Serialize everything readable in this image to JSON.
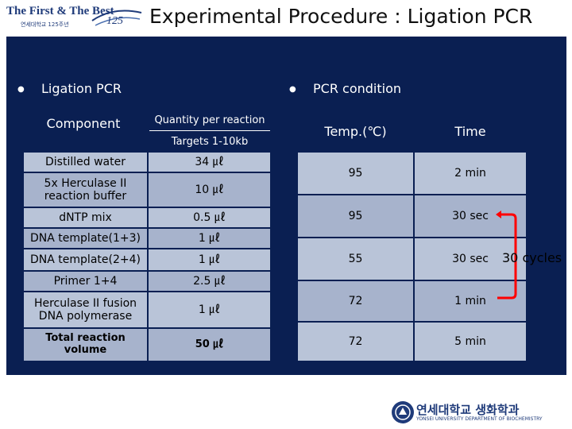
{
  "header": {
    "logo_text": "The First & The Best",
    "logo_sub": "연세대학교 125주년",
    "title": "Experimental Procedure : Ligation PCR"
  },
  "left": {
    "bullet": "Ligation PCR",
    "col_component": "Component",
    "col_quantity": "Quantity per reaction",
    "col_targets": "Targets 1-10kb",
    "rows": [
      {
        "component": "Distilled water",
        "quantity": "34 ㎕"
      },
      {
        "component": "5x Herculase II reaction buffer",
        "quantity": "10 ㎕"
      },
      {
        "component": "dNTP mix",
        "quantity": "0.5 ㎕"
      },
      {
        "component": "DNA template(1+3)",
        "quantity": "1 ㎕"
      },
      {
        "component": "DNA template(2+4)",
        "quantity": "1 ㎕"
      },
      {
        "component": "Primer 1+4",
        "quantity": "2.5 ㎕"
      },
      {
        "component": "Herculase II fusion DNA polymerase",
        "quantity": "1 ㎕"
      },
      {
        "component": "Total reaction volume",
        "quantity": "50 ㎕"
      }
    ]
  },
  "right": {
    "bullet": "PCR condition",
    "col_temp": "Temp.(℃)",
    "col_time": "Time",
    "rows": [
      {
        "temp": "95",
        "time": "2 min"
      },
      {
        "temp": "95",
        "time": "30 sec"
      },
      {
        "temp": "55",
        "time": "30 sec"
      },
      {
        "temp": "72",
        "time": "1 min"
      },
      {
        "temp": "72",
        "time": "5 min"
      }
    ],
    "cycles_label": "30 cycles"
  },
  "footer": {
    "title": "연세대학교 생화학과",
    "sub": "YONSEI UNIVERSITY DEPARTMENT OF BIOCHEMISTRY"
  },
  "colors": {
    "panel": "#0a1f52",
    "cell": "#b9c4d8",
    "bracket": "#ff0000"
  }
}
